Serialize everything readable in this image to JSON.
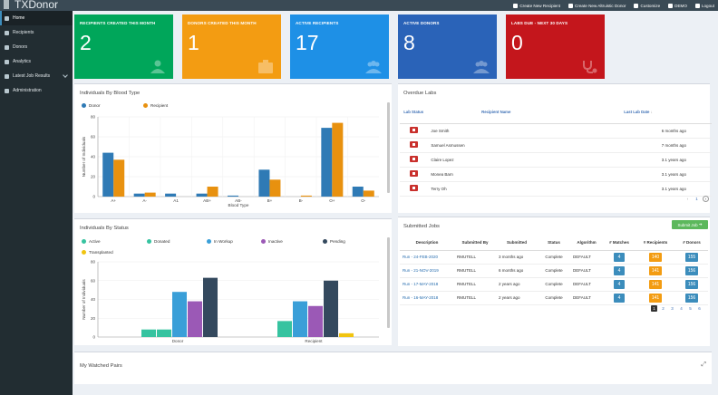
{
  "header": {
    "brand": "TXDonor",
    "nav": [
      {
        "label": "Create New Recipient",
        "icon": "user-plus-icon"
      },
      {
        "label": "Create New Altruistic Donor",
        "icon": "camera-icon"
      },
      {
        "label": "Customize",
        "icon": "gear-icon"
      },
      {
        "label": "DEMO",
        "icon": "user-icon"
      },
      {
        "label": "Logout",
        "icon": "logout-icon"
      }
    ]
  },
  "sidebar": {
    "items": [
      {
        "label": "Home",
        "icon": "home-icon",
        "active": true
      },
      {
        "label": "Recipients",
        "icon": "user-icon"
      },
      {
        "label": "Donors",
        "icon": "users-icon"
      },
      {
        "label": "Analytics",
        "icon": "chart-icon"
      },
      {
        "label": "Latest Job Results",
        "icon": "list-icon",
        "has_children": true
      },
      {
        "label": "Administration",
        "icon": "gear-icon"
      }
    ]
  },
  "stats": [
    {
      "label": "RECIPIENTS CREATED THIS MONTH",
      "value": "2",
      "color": "#00a65a",
      "icon": "user-md-icon"
    },
    {
      "label": "DONORS CREATED THIS MONTH",
      "value": "1",
      "color": "#f39c12",
      "icon": "medkit-icon"
    },
    {
      "label": "ACTIVE RECIPIENTS",
      "value": "17",
      "color": "#1e90e6",
      "icon": "users-icon"
    },
    {
      "label": "ACTIVE DONORS",
      "value": "8",
      "color": "#2a63b8",
      "icon": "users-icon"
    },
    {
      "label": "LABS DUE - NEXT 30 DAYS",
      "value": "0",
      "color": "#c4161c",
      "icon": "stethoscope-icon"
    }
  ],
  "blood_chart": {
    "title": "Individuals By Blood Type",
    "legend": [
      {
        "name": "Donor",
        "color": "#2f7ab5"
      },
      {
        "name": "Recipient",
        "color": "#e8910f"
      }
    ]
  },
  "status_chart": {
    "title": "Individuals By Status",
    "legend": [
      {
        "name": "Active",
        "color": "#36c3a0"
      },
      {
        "name": "Donated",
        "color": "#36c3a0"
      },
      {
        "name": "In Workup",
        "color": "#3a9fd8"
      },
      {
        "name": "Inactive",
        "color": "#9b59b6"
      },
      {
        "name": "Pending",
        "color": "#34495e"
      },
      {
        "name": "Transplanted",
        "color": "#f1c40f"
      }
    ]
  },
  "chart_data": [
    {
      "type": "bar",
      "title": "Individuals By Blood Type",
      "categories": [
        "A+",
        "A-",
        "A1",
        "AB+",
        "AB-",
        "B+",
        "B-",
        "O+",
        "O-"
      ],
      "xlabel": "Blood Type",
      "ylabel": "Number of Individuals",
      "ylim": [
        0,
        80
      ],
      "yticks": [
        "0",
        "20",
        "40",
        "60",
        "80"
      ],
      "series": [
        {
          "name": "Donor",
          "color": "#2f7ab5",
          "values": [
            44,
            3,
            3,
            3,
            1,
            27,
            0,
            69,
            10
          ]
        },
        {
          "name": "Recipient",
          "color": "#e8910f",
          "values": [
            37,
            4,
            0,
            10,
            0,
            17,
            1,
            74,
            6
          ]
        }
      ]
    },
    {
      "type": "bar",
      "title": "Individuals By Status",
      "categories": [
        "Donor",
        "Recipient"
      ],
      "ylabel": "Number of Individuals",
      "ylim": [
        0,
        80
      ],
      "yticks": [
        "0",
        "20",
        "40",
        "60",
        "80"
      ],
      "series": [
        {
          "name": "Active",
          "color": "#36c3a0",
          "values": [
            8,
            17
          ]
        },
        {
          "name": "Donated",
          "color": "#36c3a0",
          "values": [
            8,
            0
          ]
        },
        {
          "name": "In Workup",
          "color": "#3a9fd8",
          "values": [
            48,
            38
          ]
        },
        {
          "name": "Inactive",
          "color": "#9b59b6",
          "values": [
            38,
            33
          ]
        },
        {
          "name": "Pending",
          "color": "#34495e",
          "values": [
            63,
            60
          ]
        },
        {
          "name": "Transplanted",
          "color": "#f1c40f",
          "values": [
            0,
            4
          ]
        }
      ]
    }
  ],
  "overdue_labs": {
    "title": "Overdue Labs",
    "columns": [
      "Lab Status",
      "Recipient Name",
      "Last Lab Date"
    ],
    "rows": [
      {
        "name": "Joe Smith",
        "date": "6 months ago"
      },
      {
        "name": "Samuel Asmussen",
        "date": "7 months ago"
      },
      {
        "name": "Claire Lopez",
        "date": "3.1 years ago"
      },
      {
        "name": "Monea Barn",
        "date": "3.1 years ago"
      },
      {
        "name": "Terry Oh",
        "date": "3.1 years ago"
      }
    ],
    "pager": "1"
  },
  "submitted_jobs": {
    "title": "Submitted Jobs",
    "submit_label": "Submit Job",
    "columns": [
      "Description",
      "Submitted By",
      "Submitted",
      "Status",
      "Algorithm",
      "# Matches",
      "# Recipients",
      "# Donors"
    ],
    "rows": [
      {
        "desc": "Run - 24-FEB-2020",
        "by": "RMUTELL",
        "when": "3 months ago",
        "status": "Complete",
        "algo": "DEFAULT",
        "matches": "4",
        "recipients": "140",
        "donors": "155"
      },
      {
        "desc": "Run - 21-NOV-2019",
        "by": "RMUTELL",
        "when": "6 months ago",
        "status": "Complete",
        "algo": "DEFAULT",
        "matches": "4",
        "recipients": "141",
        "donors": "156"
      },
      {
        "desc": "Run - 17-MAY-2018",
        "by": "RMUTELL",
        "when": "2 years ago",
        "status": "Complete",
        "algo": "DEFAULT",
        "matches": "4",
        "recipients": "141",
        "donors": "156"
      },
      {
        "desc": "Run - 16-MAY-2018",
        "by": "RMUTELL",
        "when": "2 years ago",
        "status": "Complete",
        "algo": "DEFAULT",
        "matches": "4",
        "recipients": "141",
        "donors": "156"
      }
    ],
    "pages": [
      "1",
      "2",
      "3",
      "4",
      "5",
      "6"
    ]
  },
  "watched": {
    "title": "My Watched Pairs"
  }
}
